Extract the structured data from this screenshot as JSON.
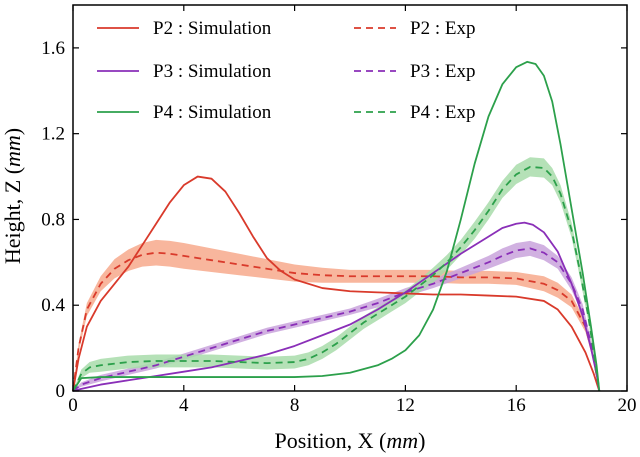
{
  "chart_data": {
    "type": "line",
    "title": "",
    "xlabel": {
      "prefix": "Position, X (",
      "unit": "mm",
      "suffix": ")"
    },
    "ylabel": {
      "prefix": "Height, Z (",
      "unit": "mm",
      "suffix": ")"
    },
    "xlim": [
      0,
      20
    ],
    "ylim": [
      0,
      1.8
    ],
    "xticks": [
      0,
      4,
      8,
      12,
      16,
      20
    ],
    "xtick_labels": [
      "0",
      "4",
      "8",
      "12",
      "16",
      "20"
    ],
    "yticks": [
      0,
      0.4,
      0.8,
      1.2,
      1.6
    ],
    "ytick_labels": [
      "0",
      "0.4",
      "0.8",
      "1.2",
      "1.6"
    ],
    "grid": false,
    "legend_position": "top",
    "series": [
      {
        "name": "P2 : Simulation",
        "style": "solid",
        "color": "#d93a2b",
        "x": [
          0,
          0.2,
          0.5,
          1,
          1.5,
          2,
          2.5,
          3,
          3.5,
          4,
          4.5,
          5,
          5.5,
          6,
          6.5,
          7,
          7.5,
          8,
          9,
          10,
          11,
          12,
          13,
          14,
          15,
          16,
          17,
          17.5,
          18,
          18.5,
          18.8,
          19
        ],
        "y": [
          0,
          0.15,
          0.3,
          0.42,
          0.5,
          0.58,
          0.68,
          0.78,
          0.88,
          0.96,
          1.0,
          0.99,
          0.93,
          0.83,
          0.72,
          0.62,
          0.56,
          0.52,
          0.48,
          0.465,
          0.46,
          0.455,
          0.45,
          0.45,
          0.445,
          0.44,
          0.42,
          0.38,
          0.3,
          0.18,
          0.08,
          0
        ]
      },
      {
        "name": "P2 : Exp",
        "style": "dashed",
        "color": "#d93a2b",
        "band_color": "#f7a98c",
        "x": [
          0,
          0.2,
          0.5,
          1,
          1.5,
          2,
          2.5,
          3,
          3.5,
          4,
          5,
          6,
          7,
          8,
          9,
          10,
          11,
          12,
          13,
          14,
          15,
          16,
          17,
          17.5,
          18,
          18.5,
          18.8,
          19
        ],
        "y": [
          0,
          0.2,
          0.38,
          0.5,
          0.57,
          0.61,
          0.635,
          0.645,
          0.64,
          0.63,
          0.61,
          0.59,
          0.57,
          0.55,
          0.54,
          0.535,
          0.535,
          0.535,
          0.535,
          0.53,
          0.53,
          0.525,
          0.5,
          0.47,
          0.42,
          0.3,
          0.15,
          0
        ],
        "band": [
          0,
          0.02,
          0.03,
          0.035,
          0.045,
          0.05,
          0.055,
          0.06,
          0.06,
          0.06,
          0.055,
          0.05,
          0.045,
          0.04,
          0.035,
          0.03,
          0.03,
          0.03,
          0.03,
          0.03,
          0.03,
          0.03,
          0.035,
          0.035,
          0.03,
          0.025,
          0.015,
          0
        ]
      },
      {
        "name": "P3 : Simulation",
        "style": "solid",
        "color": "#8a2fb8",
        "x": [
          0,
          0.3,
          1,
          2,
          3,
          4,
          5,
          6,
          7,
          8,
          9,
          10,
          11,
          12,
          13,
          14,
          15,
          15.5,
          16,
          16.3,
          16.6,
          17,
          17.5,
          18,
          18.4,
          18.7,
          18.9,
          19
        ],
        "y": [
          0,
          0.01,
          0.03,
          0.05,
          0.07,
          0.09,
          0.11,
          0.14,
          0.17,
          0.21,
          0.26,
          0.31,
          0.38,
          0.46,
          0.55,
          0.64,
          0.72,
          0.76,
          0.78,
          0.785,
          0.775,
          0.74,
          0.65,
          0.5,
          0.35,
          0.2,
          0.08,
          0
        ]
      },
      {
        "name": "P3 : Exp",
        "style": "dashed",
        "color": "#8a2fb8",
        "band_color": "#c9a3dc",
        "x": [
          0,
          0.3,
          1,
          2,
          3,
          4,
          5,
          6,
          7,
          8,
          9,
          10,
          11,
          12,
          13,
          14,
          15,
          15.5,
          16,
          16.5,
          17,
          17.5,
          18,
          18.4,
          18.7,
          18.9,
          19
        ],
        "y": [
          0,
          0.03,
          0.06,
          0.09,
          0.12,
          0.16,
          0.2,
          0.24,
          0.28,
          0.31,
          0.34,
          0.37,
          0.41,
          0.46,
          0.5,
          0.55,
          0.6,
          0.63,
          0.655,
          0.665,
          0.645,
          0.6,
          0.5,
          0.38,
          0.22,
          0.1,
          0
        ],
        "band": [
          0,
          0.01,
          0.015,
          0.015,
          0.015,
          0.015,
          0.015,
          0.015,
          0.015,
          0.015,
          0.015,
          0.015,
          0.02,
          0.02,
          0.02,
          0.025,
          0.03,
          0.035,
          0.035,
          0.035,
          0.035,
          0.03,
          0.03,
          0.025,
          0.02,
          0.01,
          0
        ]
      },
      {
        "name": "P4 : Simulation",
        "style": "solid",
        "color": "#2ca04b",
        "x": [
          0,
          0.3,
          1,
          2,
          3,
          4,
          5,
          6,
          7,
          8,
          9,
          10,
          11,
          11.5,
          12,
          12.5,
          13,
          13.5,
          14,
          14.5,
          15,
          15.5,
          16,
          16.4,
          16.7,
          17,
          17.3,
          17.6,
          18,
          18.4,
          18.7,
          18.9,
          19
        ],
        "y": [
          0,
          0.06,
          0.065,
          0.065,
          0.065,
          0.065,
          0.065,
          0.065,
          0.065,
          0.065,
          0.07,
          0.085,
          0.12,
          0.15,
          0.19,
          0.26,
          0.38,
          0.56,
          0.8,
          1.06,
          1.28,
          1.43,
          1.51,
          1.535,
          1.525,
          1.47,
          1.35,
          1.15,
          0.85,
          0.55,
          0.3,
          0.12,
          0
        ]
      },
      {
        "name": "P4 : Exp",
        "style": "dashed",
        "color": "#2ca04b",
        "band_color": "#a8dcaa",
        "x": [
          0,
          0.3,
          0.6,
          1,
          2,
          3,
          4,
          5,
          6,
          7,
          8,
          8.5,
          9,
          9.5,
          10,
          10.5,
          11,
          11.5,
          12,
          12.5,
          13,
          13.5,
          14,
          14.5,
          15,
          15.5,
          16,
          16.5,
          17,
          17.3,
          17.6,
          18,
          18.3,
          18.6,
          18.8,
          19
        ],
        "y": [
          0,
          0.08,
          0.11,
          0.12,
          0.135,
          0.14,
          0.14,
          0.14,
          0.135,
          0.13,
          0.135,
          0.15,
          0.18,
          0.22,
          0.27,
          0.32,
          0.36,
          0.4,
          0.44,
          0.49,
          0.54,
          0.6,
          0.67,
          0.75,
          0.84,
          0.94,
          1.01,
          1.045,
          1.04,
          1.0,
          0.92,
          0.75,
          0.56,
          0.35,
          0.18,
          0
        ],
        "band": [
          0,
          0.02,
          0.025,
          0.03,
          0.03,
          0.03,
          0.03,
          0.03,
          0.03,
          0.03,
          0.03,
          0.03,
          0.03,
          0.03,
          0.03,
          0.03,
          0.03,
          0.03,
          0.03,
          0.03,
          0.035,
          0.035,
          0.035,
          0.04,
          0.04,
          0.04,
          0.045,
          0.045,
          0.045,
          0.04,
          0.04,
          0.035,
          0.03,
          0.025,
          0.015,
          0
        ]
      }
    ]
  }
}
